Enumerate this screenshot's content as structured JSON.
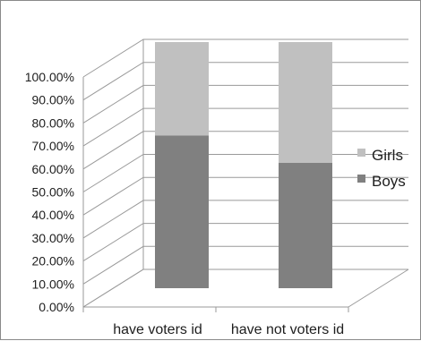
{
  "chart_data": {
    "type": "bar",
    "stacked": true,
    "three_d": true,
    "title": "",
    "xlabel": "",
    "ylabel": "",
    "categories": [
      "have voters id",
      "have not voters id"
    ],
    "series": [
      {
        "name": "Boys",
        "values": [
          0.62,
          0.51
        ],
        "color": "#808080"
      },
      {
        "name": "Girls",
        "values": [
          0.38,
          0.49
        ],
        "color": "#c0c0c0"
      }
    ],
    "ylim": [
      0,
      1.0
    ],
    "yticks": [
      "0.00%",
      "10.00%",
      "20.00%",
      "30.00%",
      "40.00%",
      "50.00%",
      "60.00%",
      "70.00%",
      "80.00%",
      "90.00%",
      "100.00%"
    ],
    "grid": true,
    "legend": "right",
    "legend_order": [
      "Girls",
      "Boys"
    ]
  },
  "colors": {
    "grid": "#9a9a9a",
    "frame": "#8a8a8a",
    "text": "#1e1e1e"
  }
}
